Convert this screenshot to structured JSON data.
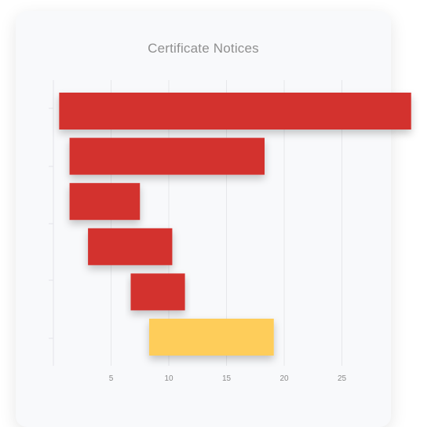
{
  "chart_data": {
    "type": "bar",
    "orientation": "horizontal",
    "title": "Certificate Notices",
    "xlabel": "",
    "ylabel": "",
    "xlim": [
      0,
      29.5
    ],
    "xticks": [
      5,
      10,
      15,
      20,
      25
    ],
    "grid": true,
    "legend": "none",
    "bars": [
      {
        "start": 0.5,
        "end": 31.0,
        "color": "#d3312e"
      },
      {
        "start": 1.4,
        "end": 18.3,
        "color": "#d3312e"
      },
      {
        "start": 1.4,
        "end": 7.5,
        "color": "#d3312e"
      },
      {
        "start": 3.0,
        "end": 10.3,
        "color": "#d3312e"
      },
      {
        "start": 6.7,
        "end": 11.4,
        "color": "#d3312e"
      },
      {
        "start": 8.3,
        "end": 19.1,
        "color": "#fecd5a"
      }
    ]
  }
}
